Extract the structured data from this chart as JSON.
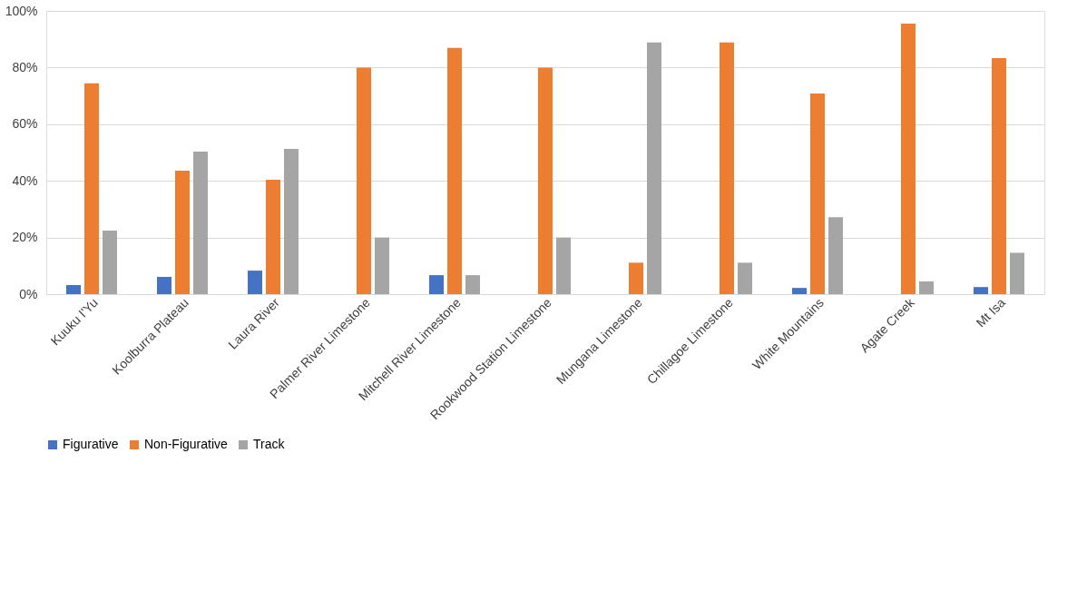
{
  "chart_data": {
    "type": "bar",
    "categories": [
      "Kuuku I'Yu",
      "Koolburra Plateau",
      "Laura River",
      "Palmer River Limestone",
      "Mitchell River Limestone",
      "Rookwood Station Limestone",
      "Mungana Limestone",
      "Chillagoe Limestone",
      "White Mountains",
      "Agate Creek",
      "Mt Isa"
    ],
    "series": [
      {
        "name": "Figurative",
        "color": "#4472c4",
        "values": [
          3.2,
          6.1,
          8.3,
          0,
          6.7,
          0,
          0,
          0,
          2.2,
          0,
          2.5
        ]
      },
      {
        "name": "Non-Figurative",
        "color": "#ed7d31",
        "values": [
          74.4,
          43.6,
          40.4,
          80,
          86.9,
          80,
          11.1,
          88.9,
          70.8,
          95.5,
          83.3
        ]
      },
      {
        "name": "Track",
        "color": "#a5a5a5",
        "values": [
          22.4,
          50.3,
          51.3,
          20,
          6.7,
          20,
          88.9,
          11.1,
          27.2,
          4.5,
          14.6
        ]
      }
    ],
    "ylim": [
      0,
      100
    ],
    "yticks": [
      {
        "value": 0,
        "label": "0%"
      },
      {
        "value": 20,
        "label": "20%"
      },
      {
        "value": 40,
        "label": "40%"
      },
      {
        "value": 60,
        "label": "60%"
      },
      {
        "value": 80,
        "label": "80%"
      },
      {
        "value": 100,
        "label": "100%"
      }
    ],
    "grid": "y",
    "legend": "bottom"
  }
}
